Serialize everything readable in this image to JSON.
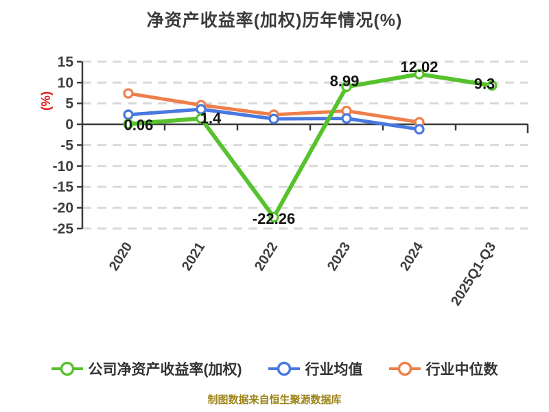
{
  "title": "净资产收益率(加权)历年情况(%)",
  "footer": "制图数据来自恒生聚源数据库",
  "colors": {
    "company_green": "#57c22d",
    "industry_avg_blue": "#4878e0",
    "industry_median_orange": "#ee7f4b",
    "axis": "#3b3b3b",
    "gridline": "#d9d9d9",
    "tick_text": "#3d3d3d",
    "data_label_text": "#151515",
    "ylabel_red": "#e01e1e",
    "footer_text": "#9c8419"
  },
  "chart_data": {
    "type": "line",
    "title": "净资产收益率(加权)历年情况(%)",
    "xlabel": "",
    "ylabel": "(%)",
    "ylim": [
      -25,
      15
    ],
    "yticks": [
      15,
      10,
      5,
      0,
      -5,
      -10,
      -15,
      -20,
      -25
    ],
    "grid": "horizontal-dashed",
    "legend_position": "bottom",
    "categories": [
      "2020",
      "2021",
      "2022",
      "2023",
      "2024",
      "2025Q1-Q3"
    ],
    "series": [
      {
        "name": "公司净资产收益率(加权)",
        "color": "#57c22d",
        "values": [
          0.06,
          1.4,
          -22.26,
          8.99,
          12.02,
          9.3
        ],
        "labels": [
          "0.06",
          "1.4",
          "-22.26",
          "8.99",
          "12.02",
          "9.3"
        ]
      },
      {
        "name": "行业均值",
        "color": "#4878e0",
        "values": [
          2.3,
          3.6,
          1.3,
          1.4,
          -1.2,
          null
        ],
        "labels": null
      },
      {
        "name": "行业中位数",
        "color": "#ee7f4b",
        "values": [
          7.4,
          4.6,
          2.3,
          3.2,
          0.5,
          null
        ],
        "labels": null
      }
    ]
  }
}
